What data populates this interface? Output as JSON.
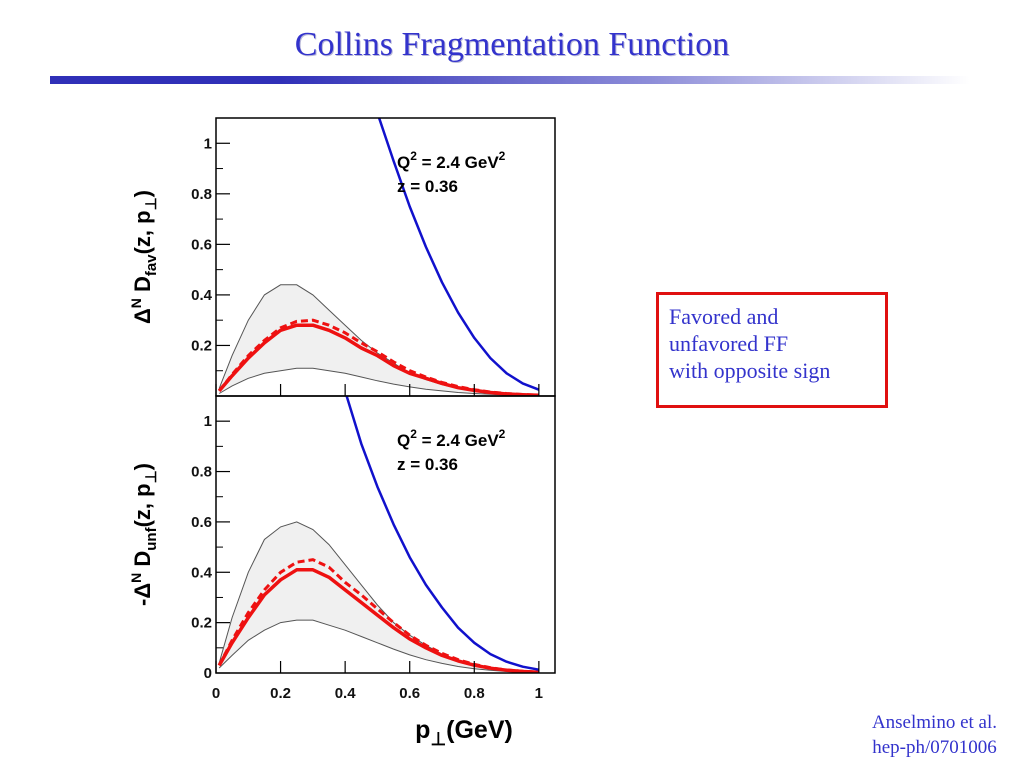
{
  "slide": {
    "title": "Collins Fragmentation Function",
    "note_lines": [
      "Favored and",
      "unfavored FF",
      "with opposite sign"
    ],
    "citation_lines": [
      "Anselmino et al.",
      "hep-ph/0701006"
    ]
  },
  "colors": {
    "title": "#3333cc",
    "band_fill": "#f0f0f0",
    "band_edge": "#555555",
    "solid_curve": "#ee1111",
    "dashed_curve": "#ee1111",
    "blue_curve": "#1111cc",
    "note_border": "#e01010"
  },
  "chart_data": [
    {
      "type": "line",
      "panel": "top",
      "ylabel": {
        "prefix": "Δ",
        "sup": "N",
        "main": " D",
        "sub": "fav",
        "rest": "(z, p",
        "rest_sub": "⊥",
        "close": ")"
      },
      "annotation": {
        "q2_text": "Q",
        "q2_sup": "2",
        "q2_rest": " = 2.4 GeV",
        "q2_unit_sup": "2",
        "z_text": "z = 0.36"
      },
      "xlim": [
        0,
        1.05
      ],
      "ylim": [
        0,
        1.1
      ],
      "yticks": [
        0.2,
        0.4,
        0.6,
        0.8,
        1
      ],
      "ytick_labels": [
        "0.2",
        "0.4",
        "0.6",
        "0.8",
        "1"
      ],
      "x": [
        0.01,
        0.05,
        0.1,
        0.15,
        0.2,
        0.25,
        0.3,
        0.35,
        0.4,
        0.45,
        0.5,
        0.55,
        0.6,
        0.65,
        0.7,
        0.75,
        0.8,
        0.85,
        0.9,
        0.95,
        1.0
      ],
      "series": [
        {
          "style": "band",
          "upper": [
            0.03,
            0.16,
            0.3,
            0.4,
            0.44,
            0.44,
            0.4,
            0.34,
            0.28,
            0.22,
            0.17,
            0.13,
            0.09,
            0.065,
            0.045,
            0.03,
            0.02,
            0.013,
            0.008,
            0.005,
            0.003
          ],
          "lower": [
            0.01,
            0.04,
            0.07,
            0.09,
            0.1,
            0.11,
            0.11,
            0.1,
            0.09,
            0.075,
            0.06,
            0.047,
            0.036,
            0.027,
            0.02,
            0.014,
            0.01,
            0.007,
            0.004,
            0.002,
            0.001
          ]
        },
        {
          "style": "solid",
          "values": [
            0.02,
            0.08,
            0.15,
            0.21,
            0.26,
            0.28,
            0.28,
            0.26,
            0.23,
            0.19,
            0.16,
            0.12,
            0.09,
            0.07,
            0.05,
            0.033,
            0.022,
            0.014,
            0.008,
            0.005,
            0.003
          ]
        },
        {
          "style": "dashed",
          "values": [
            0.02,
            0.085,
            0.16,
            0.22,
            0.27,
            0.295,
            0.3,
            0.28,
            0.25,
            0.21,
            0.175,
            0.135,
            0.1,
            0.075,
            0.054,
            0.037,
            0.025,
            0.016,
            0.01,
            0.006,
            0.003
          ]
        },
        {
          "style": "blue",
          "x": [
            0.5,
            0.55,
            0.6,
            0.65,
            0.7,
            0.75,
            0.8,
            0.85,
            0.9,
            0.95,
            1.0
          ],
          "values": [
            1.12,
            0.93,
            0.75,
            0.59,
            0.45,
            0.33,
            0.23,
            0.15,
            0.09,
            0.05,
            0.025
          ]
        }
      ]
    },
    {
      "type": "line",
      "panel": "bottom",
      "ylabel": {
        "prefix": "-Δ",
        "sup": "N",
        "main": " D",
        "sub": "unf",
        "rest": "(z, p",
        "rest_sub": "⊥",
        "close": ")"
      },
      "annotation": {
        "q2_text": "Q",
        "q2_sup": "2",
        "q2_rest": " = 2.4 GeV",
        "q2_unit_sup": "2",
        "z_text": "z = 0.36"
      },
      "xlabel": {
        "main": "p",
        "sub": "⊥",
        "rest": "(GeV)"
      },
      "xlim": [
        0,
        1.05
      ],
      "ylim": [
        0,
        1.1
      ],
      "yticks": [
        0,
        0.2,
        0.4,
        0.6,
        0.8,
        1
      ],
      "ytick_labels": [
        "0",
        "0.2",
        "0.4",
        "0.6",
        "0.8",
        "1"
      ],
      "xticks": [
        0,
        0.2,
        0.4,
        0.6,
        0.8,
        1
      ],
      "xtick_labels": [
        "0",
        "0.2",
        "0.4",
        "0.6",
        "0.8",
        "1"
      ],
      "x": [
        0.01,
        0.05,
        0.1,
        0.15,
        0.2,
        0.25,
        0.3,
        0.35,
        0.4,
        0.45,
        0.5,
        0.55,
        0.6,
        0.65,
        0.7,
        0.75,
        0.8,
        0.85,
        0.9,
        0.95,
        1.0
      ],
      "series": [
        {
          "style": "band",
          "upper": [
            0.04,
            0.22,
            0.4,
            0.53,
            0.58,
            0.6,
            0.57,
            0.51,
            0.43,
            0.35,
            0.27,
            0.2,
            0.15,
            0.11,
            0.075,
            0.05,
            0.033,
            0.02,
            0.012,
            0.007,
            0.004
          ],
          "lower": [
            0.02,
            0.07,
            0.13,
            0.17,
            0.2,
            0.21,
            0.21,
            0.19,
            0.17,
            0.145,
            0.12,
            0.095,
            0.072,
            0.053,
            0.038,
            0.026,
            0.017,
            0.011,
            0.006,
            0.003,
            0.002
          ]
        },
        {
          "style": "solid",
          "values": [
            0.03,
            0.12,
            0.22,
            0.31,
            0.37,
            0.41,
            0.41,
            0.38,
            0.33,
            0.28,
            0.23,
            0.18,
            0.135,
            0.1,
            0.07,
            0.048,
            0.031,
            0.019,
            0.011,
            0.006,
            0.003
          ]
        },
        {
          "style": "dashed",
          "values": [
            0.03,
            0.13,
            0.24,
            0.33,
            0.4,
            0.44,
            0.45,
            0.42,
            0.36,
            0.31,
            0.255,
            0.2,
            0.15,
            0.11,
            0.078,
            0.053,
            0.034,
            0.021,
            0.012,
            0.007,
            0.003
          ]
        },
        {
          "style": "blue",
          "x": [
            0.4,
            0.45,
            0.5,
            0.55,
            0.6,
            0.65,
            0.7,
            0.75,
            0.8,
            0.85,
            0.9,
            0.95,
            1.0
          ],
          "values": [
            1.12,
            0.91,
            0.74,
            0.59,
            0.46,
            0.35,
            0.26,
            0.18,
            0.12,
            0.075,
            0.045,
            0.025,
            0.013
          ]
        }
      ]
    }
  ]
}
